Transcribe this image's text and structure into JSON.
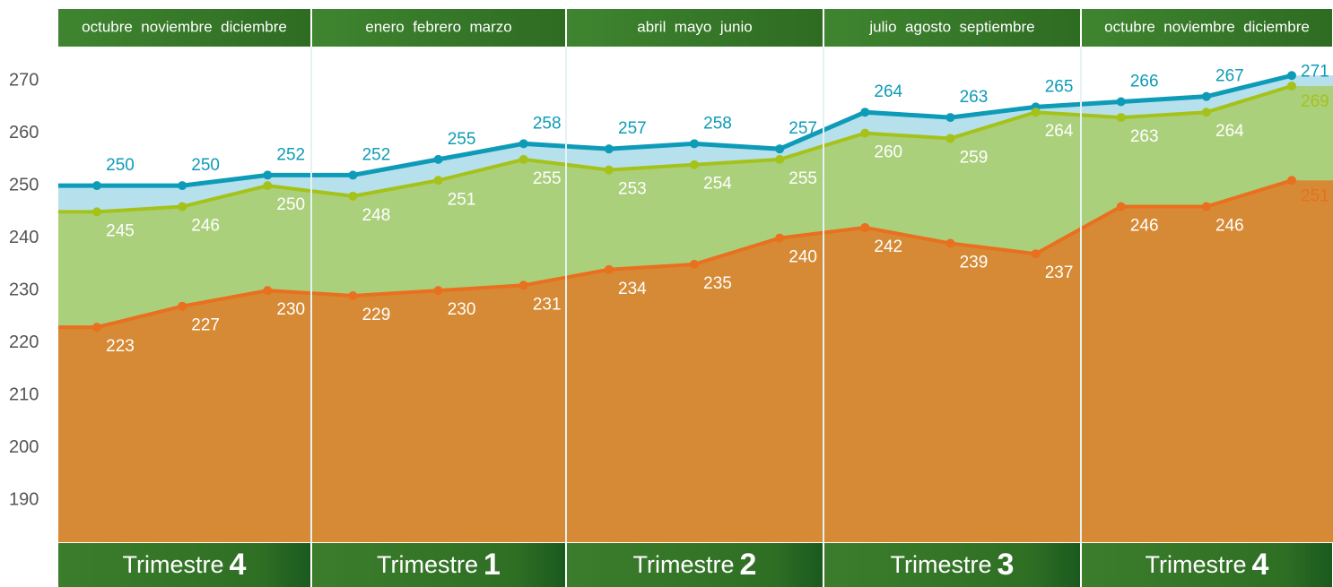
{
  "chart_data": {
    "type": "area",
    "quarters": [
      {
        "months": "octubre  noviembre  diciembre",
        "label": "Trimestre",
        "number": "4"
      },
      {
        "months": "enero  febrero  marzo",
        "label": "Trimestre",
        "number": "1"
      },
      {
        "months": "abril  mayo  junio",
        "label": "Trimestre",
        "number": "2"
      },
      {
        "months": "julio  agosto  septiembre",
        "label": "Trimestre",
        "number": "3"
      },
      {
        "months": "octubre  noviembre  diciembre",
        "label": "Trimestre",
        "number": "4"
      }
    ],
    "series": [
      {
        "color": "#0e9bb7",
        "fill": "#b6e0ec",
        "values": [
          250,
          250,
          252,
          252,
          255,
          258,
          257,
          258,
          257,
          264,
          263,
          265,
          266,
          267,
          271
        ]
      },
      {
        "color": "#a5c21a",
        "fill": "#abd07c",
        "values": [
          245,
          246,
          250,
          248,
          251,
          255,
          253,
          254,
          255,
          260,
          259,
          264,
          263,
          264,
          269
        ]
      },
      {
        "color": "#e8701f",
        "fill": "#d68a35",
        "values": [
          223,
          227,
          230,
          229,
          230,
          231,
          234,
          235,
          240,
          242,
          239,
          237,
          246,
          246,
          251
        ]
      }
    ],
    "ylim": [
      182,
      276
    ],
    "yticks": [
      190,
      200,
      210,
      220,
      230,
      240,
      250,
      260,
      270
    ]
  }
}
